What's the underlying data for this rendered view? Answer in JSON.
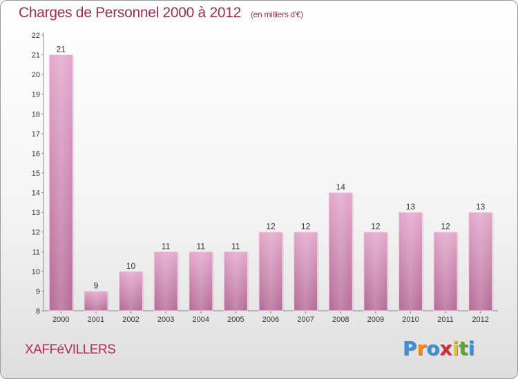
{
  "title": "Charges de Personnel 2000 à 2012",
  "subtitle": "(en milliers d'€)",
  "commune": "XAFFéVILLERS",
  "logo": {
    "letters": [
      "P",
      "r",
      "o",
      "x",
      "i",
      "t",
      "i"
    ],
    "colors": [
      "#3d8fd6",
      "#f08a1c",
      "#3d8fd6",
      "#d22f3a",
      "#f0c419",
      "#5aa832",
      "#3d8fd6"
    ]
  },
  "colors": {
    "bar": "#d88fba",
    "bar_dark": "#b46a95",
    "title": "#9b2c52"
  },
  "chart_data": {
    "type": "bar",
    "title": "Charges de Personnel 2000 à 2012",
    "subtitle": "(en milliers d'€)",
    "xlabel": "",
    "ylabel": "",
    "categories": [
      "2000",
      "2001",
      "2002",
      "2003",
      "2004",
      "2005",
      "2006",
      "2007",
      "2008",
      "2009",
      "2010",
      "2011",
      "2012"
    ],
    "values": [
      21,
      9,
      10,
      11,
      11,
      11,
      12,
      12,
      14,
      12,
      13,
      12,
      13
    ],
    "ylim": [
      8,
      22
    ],
    "yticks": [
      8,
      9,
      10,
      11,
      12,
      13,
      14,
      15,
      16,
      17,
      18,
      19,
      20,
      21,
      22
    ],
    "grid": false,
    "data_labels": true
  }
}
